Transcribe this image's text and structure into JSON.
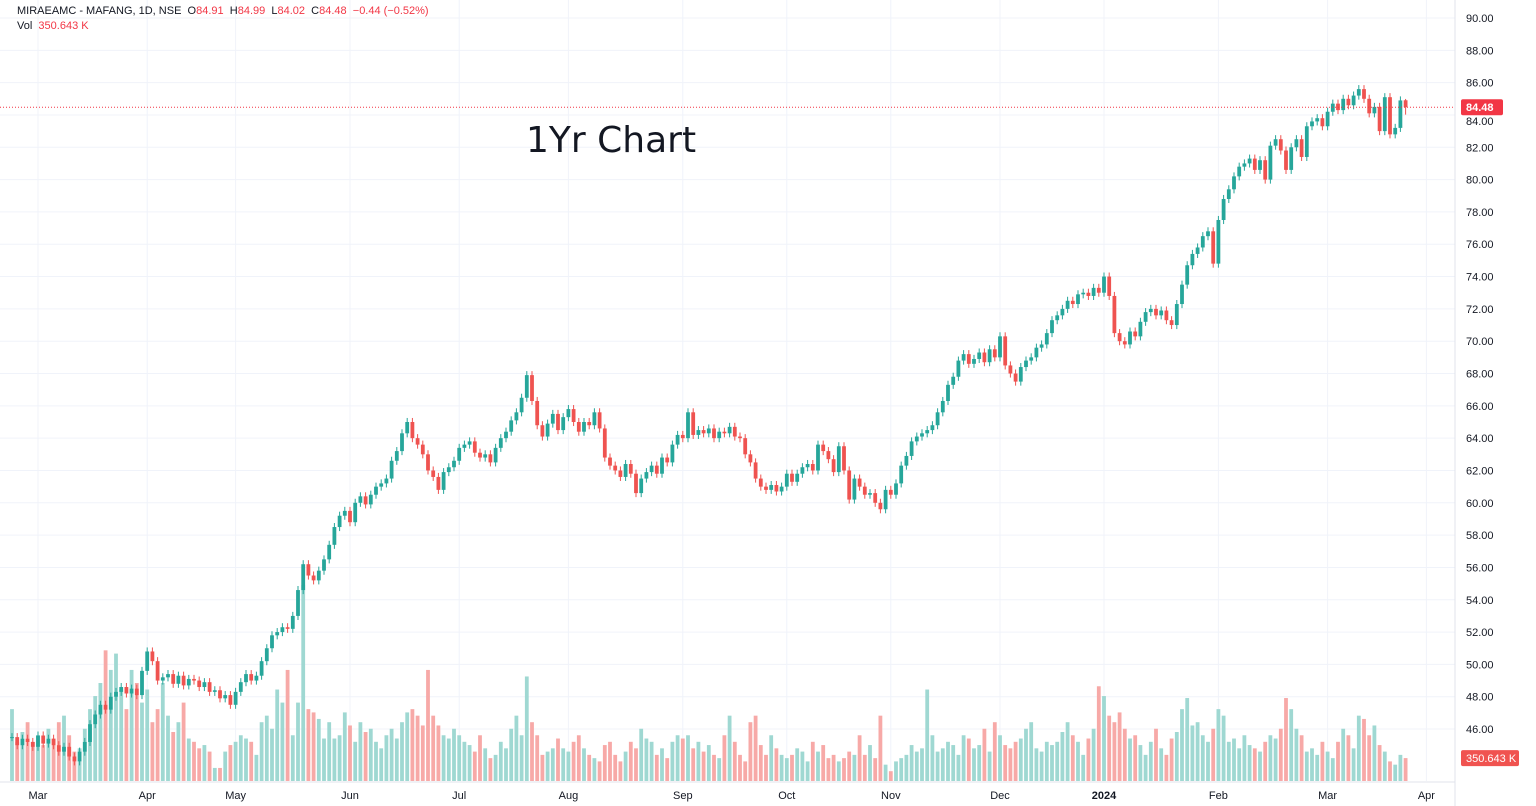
{
  "header": {
    "symbol": "MIRAEAMC - MAFANG, 1D, NSE",
    "open_label": "O",
    "open": "84.91",
    "high_label": "H",
    "high": "84.99",
    "low_label": "L",
    "low": "84.02",
    "close_label": "C",
    "close": "84.48",
    "change": "−0.44 (−0.52%)",
    "vol_label": "Vol",
    "vol": "350.643 K"
  },
  "annotation": "1Yr Chart",
  "colors": {
    "up": "#26a69a",
    "down": "#ef5350",
    "up_volume": "#9fd8d2",
    "down_volume": "#f7a9a7",
    "grid": "#f0f3fa",
    "last_price": "#f23645"
  },
  "chart_data": {
    "type": "candlestick",
    "interval": "1D",
    "ylim": [
      45,
      90.6
    ],
    "y_ticks": [
      "46.00",
      "48.00",
      "50.00",
      "52.00",
      "54.00",
      "56.00",
      "58.00",
      "60.00",
      "62.00",
      "64.00",
      "66.00",
      "68.00",
      "70.00",
      "72.00",
      "74.00",
      "76.00",
      "78.00",
      "80.00",
      "82.00",
      "84.00",
      "86.00",
      "88.00",
      "90.00"
    ],
    "x_ticks": [
      {
        "label": "Mar",
        "index": 5
      },
      {
        "label": "Apr",
        "index": 26
      },
      {
        "label": "May",
        "index": 43
      },
      {
        "label": "Jun",
        "index": 65
      },
      {
        "label": "Jul",
        "index": 86
      },
      {
        "label": "Aug",
        "index": 107
      },
      {
        "label": "Sep",
        "index": 129
      },
      {
        "label": "Oct",
        "index": 149
      },
      {
        "label": "Nov",
        "index": 169
      },
      {
        "label": "Dec",
        "index": 190
      },
      {
        "label": "2024",
        "index": 210
      },
      {
        "label": "Feb",
        "index": 232
      },
      {
        "label": "Mar",
        "index": 253
      },
      {
        "label": "Apr",
        "index": 272
      }
    ],
    "grid": true,
    "last_candle": {
      "open": 84.91,
      "high": 84.99,
      "low": 84.02,
      "close": 84.48
    },
    "last_price_label": "84.48",
    "last_volume_label": "350.643 K",
    "close": [
      45.5,
      45.0,
      45.4,
      45.2,
      44.9,
      45.6,
      45.1,
      45.4,
      45.0,
      44.6,
      44.9,
      44.3,
      44.0,
      44.6,
      45.2,
      46.3,
      46.9,
      47.5,
      47.2,
      48.0,
      48.3,
      48.6,
      48.2,
      48.5,
      48.1,
      49.6,
      50.8,
      50.2,
      49.0,
      49.2,
      49.4,
      48.8,
      49.3,
      48.7,
      49.1,
      49.0,
      48.6,
      48.9,
      48.3,
      48.4,
      47.9,
      48.1,
      47.5,
      48.3,
      48.9,
      49.4,
      49.0,
      49.3,
      50.2,
      51.0,
      51.8,
      52.0,
      52.3,
      52.2,
      53.0,
      54.6,
      56.2,
      55.5,
      55.2,
      55.8,
      56.5,
      57.4,
      58.5,
      59.2,
      59.5,
      58.8,
      60.0,
      60.4,
      59.9,
      60.5,
      61.0,
      61.2,
      61.5,
      62.6,
      63.2,
      64.3,
      65.0,
      64.0,
      63.6,
      63.0,
      62.0,
      61.6,
      60.8,
      61.9,
      62.2,
      62.6,
      63.4,
      63.6,
      63.8,
      63.1,
      62.8,
      63.0,
      62.5,
      63.4,
      64.0,
      64.4,
      65.1,
      65.6,
      66.5,
      67.9,
      66.3,
      64.8,
      64.1,
      64.9,
      65.5,
      64.5,
      65.3,
      65.8,
      65.0,
      64.4,
      65.0,
      64.8,
      65.6,
      64.6,
      62.8,
      62.3,
      62.0,
      61.6,
      62.4,
      61.8,
      60.6,
      61.5,
      61.9,
      62.3,
      61.8,
      62.8,
      62.5,
      63.6,
      64.2,
      64.0,
      65.6,
      64.2,
      64.5,
      64.3,
      64.6,
      64.0,
      64.4,
      64.3,
      64.7,
      64.1,
      64.0,
      63.0,
      62.5,
      61.5,
      61.0,
      60.8,
      61.1,
      60.7,
      61.0,
      61.8,
      61.3,
      61.8,
      62.2,
      62.4,
      62.0,
      63.6,
      63.2,
      62.7,
      61.9,
      63.5,
      62.0,
      60.2,
      61.5,
      61.0,
      60.5,
      60.6,
      60.0,
      59.6,
      60.8,
      60.5,
      61.2,
      62.3,
      62.9,
      63.8,
      64.1,
      64.3,
      64.5,
      64.8,
      65.6,
      66.3,
      67.3,
      67.8,
      68.8,
      69.2,
      68.6,
      68.9,
      69.3,
      68.7,
      69.5,
      69.0,
      70.3,
      68.5,
      68.0,
      67.5,
      68.4,
      68.8,
      69.0,
      69.6,
      69.8,
      70.5,
      71.3,
      71.6,
      72.0,
      72.5,
      72.3,
      72.9,
      73.0,
      72.8,
      73.3,
      73.0,
      74.0,
      72.8,
      70.5,
      70.0,
      69.8,
      70.6,
      70.3,
      71.2,
      71.8,
      72.0,
      71.6,
      71.9,
      71.3,
      71.0,
      72.3,
      73.5,
      74.7,
      75.4,
      75.8,
      76.5,
      76.8,
      74.8,
      77.5,
      78.8,
      79.4,
      80.2,
      80.8,
      81.0,
      81.3,
      80.6,
      81.2,
      80.0,
      82.1,
      82.5,
      81.8,
      80.6,
      82.0,
      82.5,
      81.4,
      83.3,
      83.6,
      83.8,
      83.3,
      84.2,
      84.7,
      84.3,
      85.0,
      84.6,
      85.2,
      85.6,
      85.0,
      84.1,
      84.5,
      83.0,
      85.1,
      82.8,
      83.2,
      84.9,
      84.48
    ],
    "volume_k": [
      1100,
      600,
      750,
      900,
      600,
      700,
      550,
      800,
      650,
      900,
      1000,
      700,
      450,
      500,
      800,
      1100,
      1300,
      1500,
      2000,
      1700,
      1950,
      1400,
      1100,
      1700,
      1500,
      1200,
      1400,
      900,
      1100,
      1500,
      1000,
      750,
      900,
      1200,
      650,
      600,
      500,
      550,
      450,
      200,
      200,
      450,
      550,
      600,
      700,
      650,
      600,
      400,
      900,
      1000,
      800,
      1400,
      1200,
      1700,
      700,
      1200,
      3000,
      1100,
      1050,
      950,
      650,
      900,
      650,
      700,
      1050,
      850,
      600,
      900,
      750,
      800,
      600,
      500,
      700,
      800,
      650,
      900,
      1050,
      1100,
      1000,
      850,
      1700,
      1000,
      850,
      700,
      650,
      800,
      700,
      600,
      550,
      450,
      700,
      500,
      350,
      400,
      600,
      500,
      800,
      1000,
      700,
      1600,
      900,
      700,
      400,
      450,
      500,
      650,
      500,
      450,
      600,
      700,
      500,
      400,
      350,
      300,
      550,
      600,
      400,
      300,
      450,
      600,
      500,
      800,
      650,
      600,
      400,
      500,
      350,
      600,
      700,
      650,
      700,
      500,
      600,
      450,
      550,
      400,
      350,
      700,
      1000,
      600,
      400,
      300,
      900,
      1000,
      550,
      400,
      700,
      500,
      400,
      350,
      400,
      500,
      450,
      300,
      600,
      450,
      550,
      350,
      400,
      300,
      350,
      450,
      400,
      700,
      400,
      550,
      350,
      1000,
      250,
      150,
      300,
      350,
      400,
      550,
      450,
      500,
      1400,
      700,
      450,
      500,
      600,
      550,
      400,
      700,
      650,
      500,
      550,
      800,
      450,
      900,
      700,
      550,
      500,
      600,
      650,
      800,
      900,
      500,
      450,
      600,
      550,
      600,
      750,
      900,
      700,
      600,
      400,
      650,
      800,
      1450,
      1300,
      1000,
      900,
      1050,
      800,
      650,
      700,
      550,
      400,
      600,
      800,
      500,
      400,
      650,
      750,
      1100,
      1270,
      850,
      900,
      700,
      600,
      800,
      1100,
      1000,
      600,
      650,
      500,
      700,
      550,
      500,
      450,
      600,
      700,
      650,
      800,
      1270,
      1100,
      800,
      700,
      450,
      500,
      400,
      600,
      450,
      350,
      600,
      800,
      700,
      500,
      1000,
      950,
      700,
      850,
      550,
      450,
      300,
      250,
      400,
      350.643
    ]
  }
}
